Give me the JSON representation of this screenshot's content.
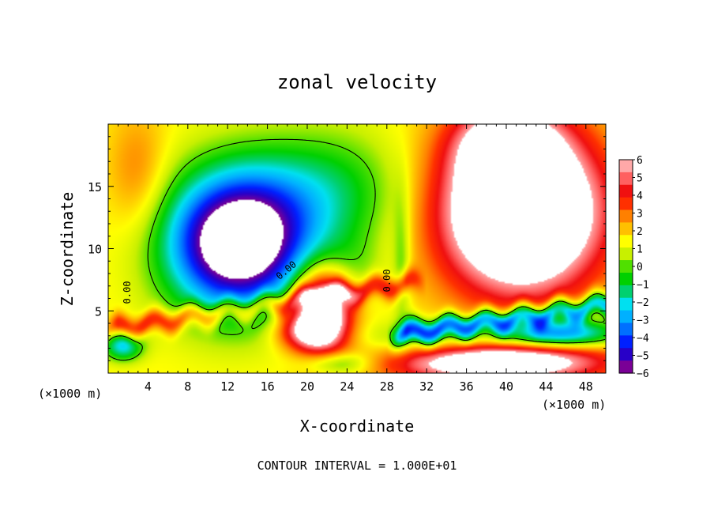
{
  "chart_data": {
    "type": "heatmap",
    "title": "zonal velocity",
    "xlabel": "X-coordinate",
    "ylabel": "Z-coordinate",
    "x_unit_label": "(×1000 m)",
    "x_unit_label_right": "(×1000 m)",
    "footer": "CONTOUR INTERVAL = 1.000E+01",
    "xlim": [
      0,
      50
    ],
    "ylim": [
      0,
      20
    ],
    "x_ticks": [
      4,
      8,
      12,
      16,
      20,
      24,
      28,
      32,
      36,
      40,
      44,
      48
    ],
    "x_tick_labels": [
      "4",
      "8",
      "12",
      "16",
      "20",
      "24",
      "28",
      "32",
      "36",
      "40",
      "44",
      "48"
    ],
    "y_ticks": [
      5,
      10,
      15
    ],
    "y_tick_labels": [
      "5",
      "10",
      "15"
    ],
    "colorbar": {
      "min": -6,
      "max": 6,
      "tick_values": [
        6,
        5,
        4,
        3,
        2,
        1,
        0,
        -1,
        -2,
        -3,
        -4,
        -5,
        -6
      ],
      "tick_labels": [
        "6",
        "5",
        "4",
        "3",
        "2",
        "1",
        "0",
        "−1",
        "−2",
        "−3",
        "−4",
        "−5",
        "−6"
      ],
      "colors": [
        "#7a0096",
        "#2800c8",
        "#0020ff",
        "#0070ff",
        "#00b0ff",
        "#00e0f0",
        "#00d070",
        "#00d000",
        "#50e000",
        "#c8f000",
        "#ffff00",
        "#ffc000",
        "#ff8000",
        "#ff3000",
        "#f01010",
        "#ff6060",
        "#ffa8a8"
      ]
    },
    "contour_labels": [
      "0.00",
      "0.00",
      "0.00"
    ],
    "field": {
      "background_value": 1.6,
      "components": [
        {
          "type": "gauss",
          "x": 13,
          "z": 10.5,
          "rx": 7,
          "rz": 5.5,
          "amp": -10
        },
        {
          "type": "gauss",
          "x": 22,
          "z": 14.5,
          "rx": 8,
          "rz": 5,
          "amp": -2.6
        },
        {
          "type": "gauss",
          "x": 23,
          "z": 8,
          "rx": 4,
          "rz": 3,
          "amp": -1.6
        },
        {
          "type": "gauss",
          "x": 21.5,
          "z": 5.2,
          "rx": 3,
          "rz": 3.6,
          "amp": 8
        },
        {
          "type": "gauss",
          "x": 41.5,
          "z": 13,
          "rx": 8,
          "rz": 6.5,
          "amp": 10
        },
        {
          "type": "gauss",
          "x": 40,
          "z": 18.5,
          "rx": 5,
          "rz": 3,
          "amp": 4
        },
        {
          "type": "gauss",
          "x": 3,
          "z": 16,
          "rx": 3,
          "rz": 5,
          "amp": 1.5
        },
        {
          "type": "gauss",
          "x": 19.5,
          "z": 3.4,
          "rx": 3,
          "rz": 1.4,
          "amp": 3
        },
        {
          "type": "gauss",
          "x": 29.5,
          "z": 9,
          "rx": 0.9,
          "rz": 6,
          "amp": -1.6
        },
        {
          "type": "gauss",
          "x": 33,
          "z": 2.6,
          "rx": 8,
          "rz": 1.5,
          "amp": -2
        },
        {
          "type": "gauss",
          "x": 23,
          "z": 0.8,
          "rx": 3.5,
          "rz": 1,
          "amp": -3
        },
        {
          "type": "gauss",
          "x": 39,
          "z": 0.9,
          "rx": 11,
          "rz": 1.6,
          "amp": 7
        },
        {
          "type": "gauss",
          "x": 45,
          "z": 3.2,
          "rx": 6,
          "rz": 1.2,
          "amp": -6
        },
        {
          "type": "gauss",
          "x": 1.5,
          "z": 2.2,
          "rx": 2,
          "rz": 1.2,
          "amp": -4
        },
        {
          "type": "wavy_band",
          "x0": 1,
          "z0": 3.6,
          "x1": 30,
          "z1": 7.2,
          "width": 0.9,
          "amp": 3
        },
        {
          "type": "wavy_band",
          "x0": 30,
          "z0": 3.2,
          "x1": 50,
          "z1": 5.5,
          "width": 0.9,
          "amp": -5
        }
      ]
    }
  }
}
